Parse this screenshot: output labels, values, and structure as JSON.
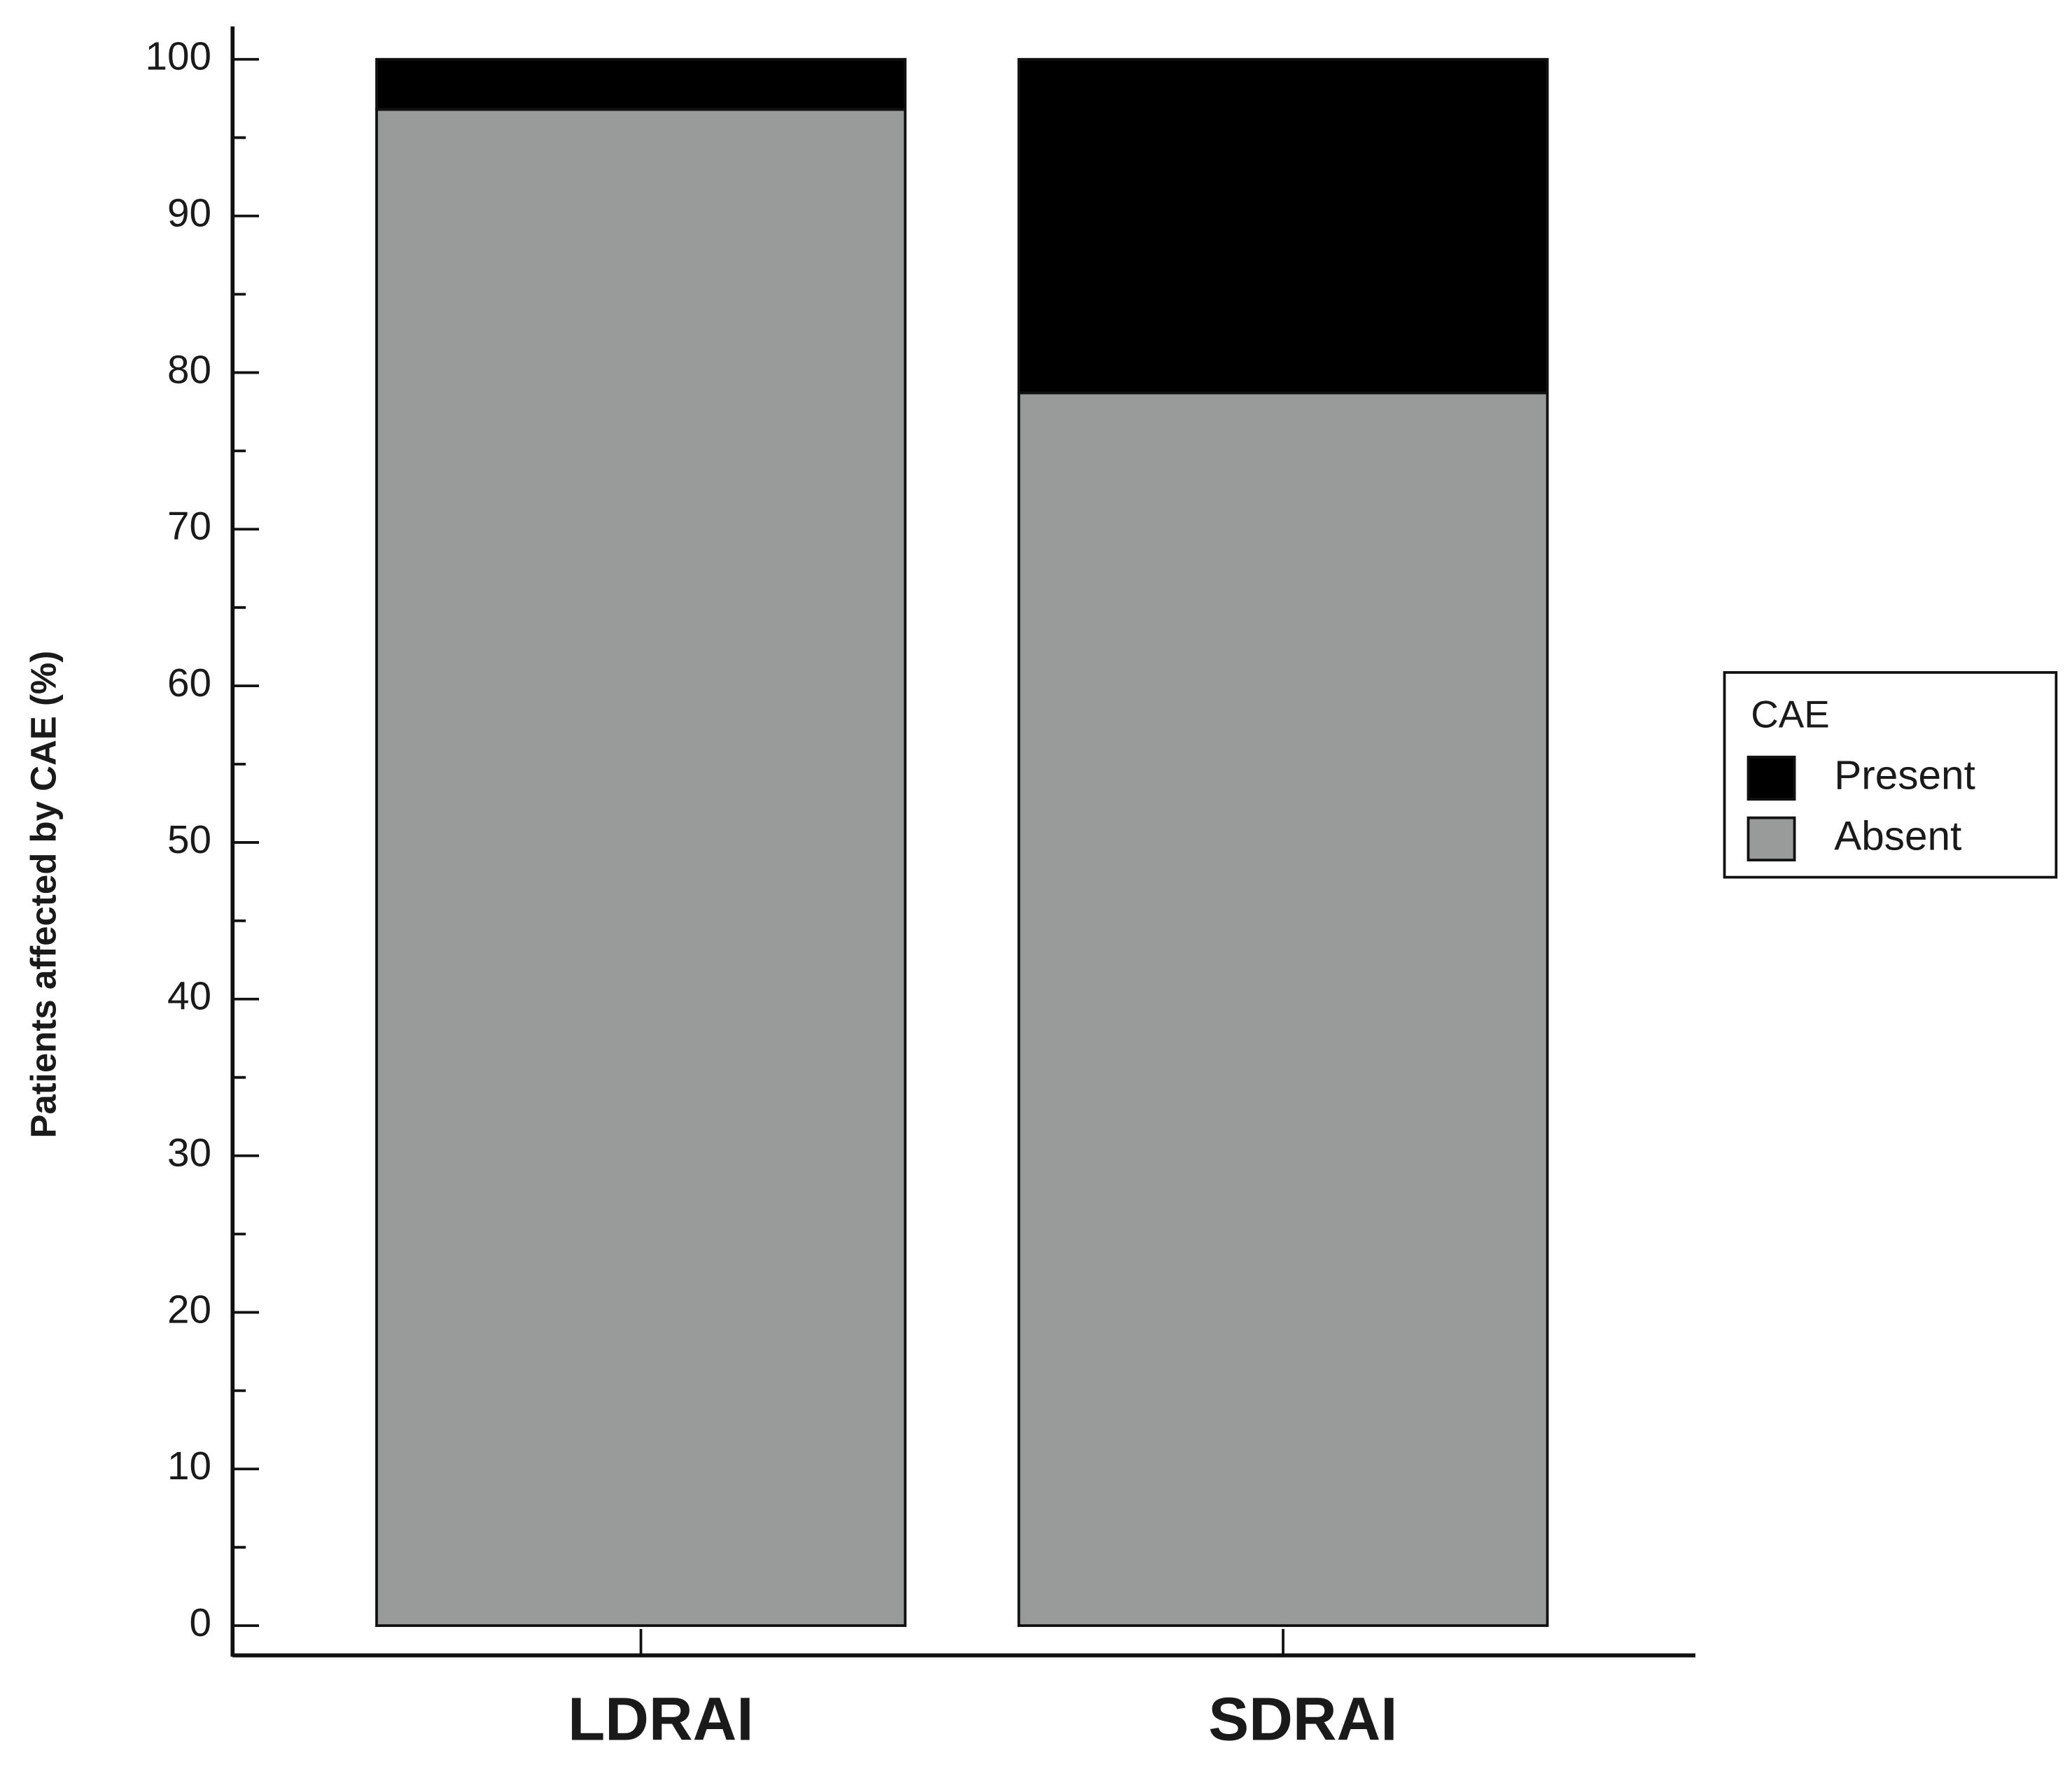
{
  "chart_data": {
    "type": "stacked_bar",
    "y_label": "Patients affected by CAE (%)",
    "categories": [
      "LDRAI",
      "SDRAI"
    ],
    "series": [
      {
        "name": "Absent",
        "color": "#999b9a",
        "values": [
          96.8,
          78.7
        ]
      },
      {
        "name": "Present",
        "color": "#000000",
        "values": [
          3.2,
          21.3
        ]
      }
    ],
    "ylim": [
      -1.9,
      102.1
    ],
    "yticks": [
      0,
      10,
      20,
      30,
      40,
      50,
      60,
      70,
      80,
      90,
      100
    ],
    "y_minor_ticks": [
      5,
      15,
      25,
      35,
      45,
      55,
      65,
      75,
      85,
      95
    ],
    "legend_title": "CAE",
    "legend": "right"
  }
}
